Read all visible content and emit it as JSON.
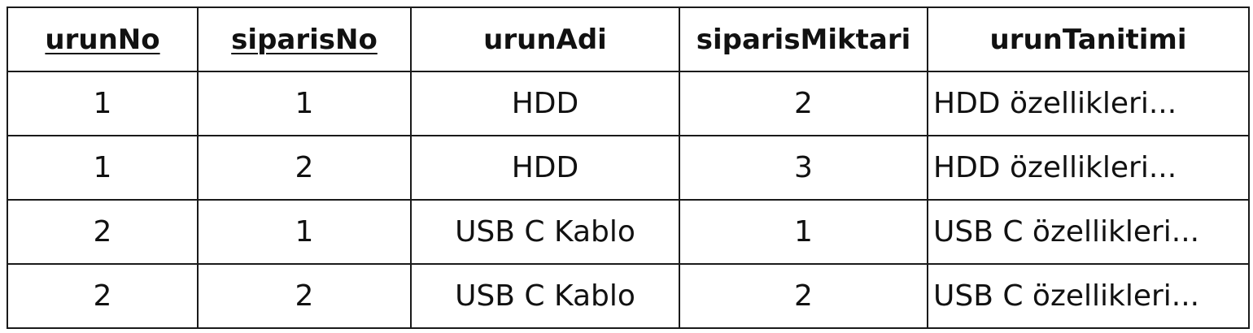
{
  "table": {
    "columns": [
      {
        "key": "urunNo",
        "label": "urunNo",
        "primary_key": true
      },
      {
        "key": "siparisNo",
        "label": "siparisNo",
        "primary_key": true
      },
      {
        "key": "urunAdi",
        "label": "urunAdi",
        "primary_key": false
      },
      {
        "key": "siparisMiktari",
        "label": "siparisMiktari",
        "primary_key": false
      },
      {
        "key": "urunTanitimi",
        "label": "urunTanitimi",
        "primary_key": false
      }
    ],
    "rows": [
      [
        "1",
        "1",
        "HDD",
        "2",
        "HDD özellikleri..."
      ],
      [
        "1",
        "2",
        "HDD",
        "3",
        "HDD özellikleri..."
      ],
      [
        "2",
        "1",
        "USB C Kablo",
        "1",
        "USB C özellikleri..."
      ],
      [
        "2",
        "2",
        "USB C Kablo",
        "2",
        "USB C özellikleri..."
      ]
    ]
  }
}
